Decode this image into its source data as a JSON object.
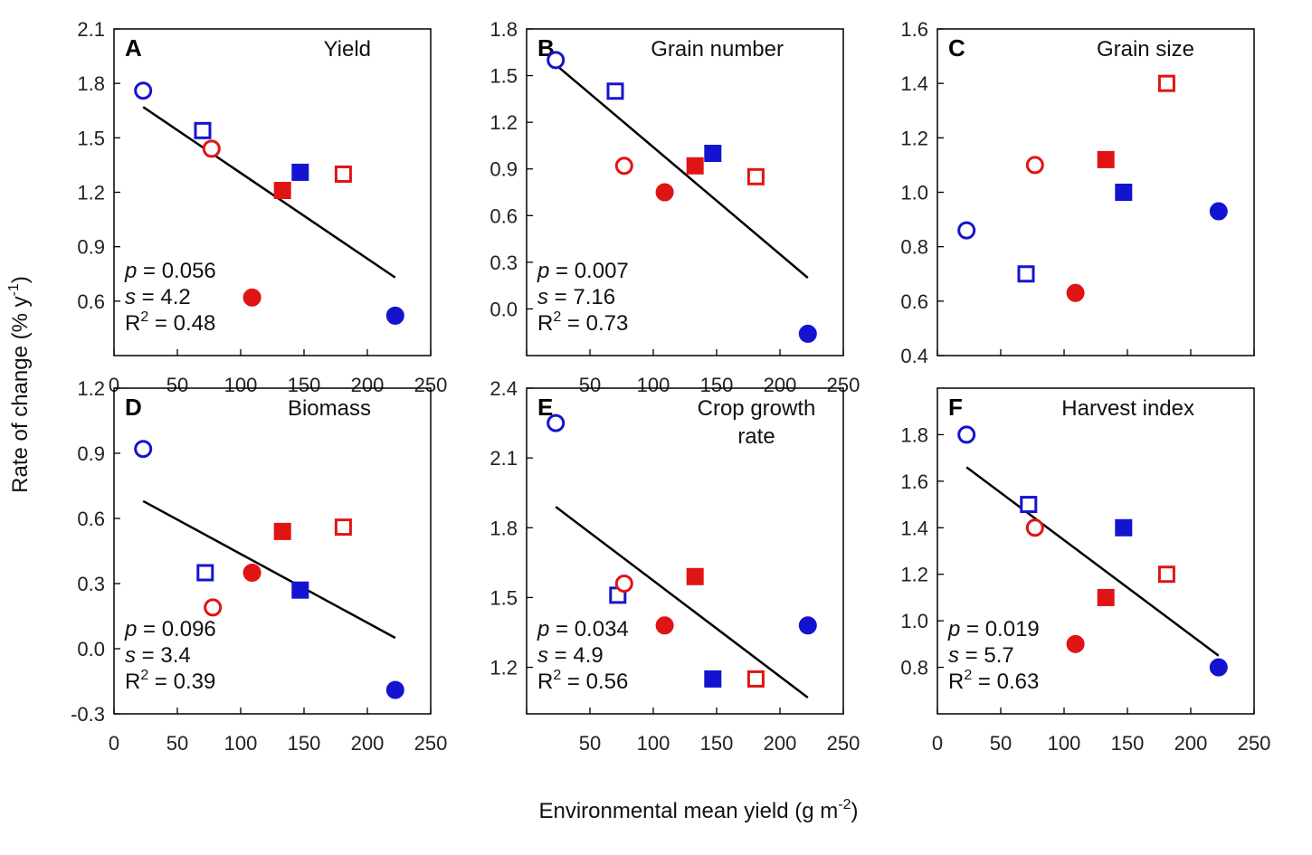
{
  "figure": {
    "xlabel": "Environmental mean yield (g m",
    "xlabel_sup": "-2",
    "xlabel_end": ")",
    "ylabel": "Rate of change (% y",
    "ylabel_sup": "-1",
    "ylabel_end": ")"
  },
  "colors": {
    "red": "#e01414",
    "blue": "#1414d0",
    "line": "#000000"
  },
  "chart_data": [
    {
      "type": "scatter",
      "letter": "A",
      "title": [
        "Yield"
      ],
      "xlim": [
        0,
        250
      ],
      "xticks": [
        0,
        50,
        100,
        150,
        200,
        250
      ],
      "xtick_labels": [
        "0",
        "50",
        "100",
        "150",
        "200",
        "250"
      ],
      "ylim": [
        0.3,
        2.1
      ],
      "yticks": [
        0.6,
        0.9,
        1.2,
        1.5,
        1.8,
        2.1
      ],
      "ytick_labels": [
        "0.6",
        "0.9",
        "1.2",
        "1.5",
        "1.8",
        "2.1"
      ],
      "points": [
        {
          "x": 23,
          "y": 1.76,
          "shape": "circle",
          "fill": "open",
          "color": "blue"
        },
        {
          "x": 70,
          "y": 1.54,
          "shape": "square",
          "fill": "open",
          "color": "blue"
        },
        {
          "x": 77,
          "y": 1.44,
          "shape": "circle",
          "fill": "open",
          "color": "red"
        },
        {
          "x": 133,
          "y": 1.21,
          "shape": "square",
          "fill": "filled",
          "color": "red"
        },
        {
          "x": 147,
          "y": 1.31,
          "shape": "square",
          "fill": "filled",
          "color": "blue"
        },
        {
          "x": 181,
          "y": 1.3,
          "shape": "square",
          "fill": "open",
          "color": "red"
        },
        {
          "x": 109,
          "y": 0.62,
          "shape": "circle",
          "fill": "filled",
          "color": "red"
        },
        {
          "x": 222,
          "y": 0.52,
          "shape": "circle",
          "fill": "filled",
          "color": "blue"
        }
      ],
      "fit_line": {
        "x": [
          23,
          222
        ],
        "y": [
          1.67,
          0.73
        ]
      },
      "stats": {
        "p": "p",
        "p_val": " = 0.056",
        "s": "s",
        "s_val": " = 4.2",
        "r": "R",
        "r_sup": "2",
        "r_val": " = 0.48"
      },
      "stats_pos": "bottom-left"
    },
    {
      "type": "scatter",
      "letter": "B",
      "title": [
        "Grain number"
      ],
      "xlim": [
        0,
        250
      ],
      "xticks": [
        50,
        100,
        150,
        200,
        250
      ],
      "xtick_labels": [
        "50",
        "100",
        "150",
        "200",
        "250"
      ],
      "ylim": [
        -0.3,
        1.8
      ],
      "yticks": [
        0.0,
        0.3,
        0.6,
        0.9,
        1.2,
        1.5,
        1.8
      ],
      "ytick_labels": [
        "0.0",
        "0.3",
        "0.6",
        "0.9",
        "1.2",
        "1.5",
        "1.8"
      ],
      "points": [
        {
          "x": 23,
          "y": 1.6,
          "shape": "circle",
          "fill": "open",
          "color": "blue"
        },
        {
          "x": 70,
          "y": 1.4,
          "shape": "square",
          "fill": "open",
          "color": "blue"
        },
        {
          "x": 77,
          "y": 0.92,
          "shape": "circle",
          "fill": "open",
          "color": "red"
        },
        {
          "x": 109,
          "y": 0.75,
          "shape": "circle",
          "fill": "filled",
          "color": "red"
        },
        {
          "x": 133,
          "y": 0.92,
          "shape": "square",
          "fill": "filled",
          "color": "red"
        },
        {
          "x": 147,
          "y": 1.0,
          "shape": "square",
          "fill": "filled",
          "color": "blue"
        },
        {
          "x": 181,
          "y": 0.85,
          "shape": "square",
          "fill": "open",
          "color": "red"
        },
        {
          "x": 222,
          "y": -0.16,
          "shape": "circle",
          "fill": "filled",
          "color": "blue"
        }
      ],
      "fit_line": {
        "x": [
          23,
          222
        ],
        "y": [
          1.57,
          0.2
        ]
      },
      "stats": {
        "p": "p",
        "p_val": " = 0.007",
        "s": "s",
        "s_val": " = 7.16",
        "r": "R",
        "r_sup": "2",
        "r_val": " = 0.73"
      },
      "stats_pos": "bottom-left"
    },
    {
      "type": "scatter",
      "letter": "C",
      "title": [
        "Grain size"
      ],
      "xlim": [
        0,
        250
      ],
      "xticks": [],
      "xtick_labels": [],
      "ylim": [
        0.4,
        1.6
      ],
      "yticks": [
        0.4,
        0.6,
        0.8,
        1.0,
        1.2,
        1.4,
        1.6
      ],
      "ytick_labels": [
        "0.4",
        "0.6",
        "0.8",
        "1.0",
        "1.2",
        "1.4",
        "1.6"
      ],
      "points": [
        {
          "x": 23,
          "y": 0.86,
          "shape": "circle",
          "fill": "open",
          "color": "blue"
        },
        {
          "x": 70,
          "y": 0.7,
          "shape": "square",
          "fill": "open",
          "color": "blue"
        },
        {
          "x": 77,
          "y": 1.1,
          "shape": "circle",
          "fill": "open",
          "color": "red"
        },
        {
          "x": 109,
          "y": 0.63,
          "shape": "circle",
          "fill": "filled",
          "color": "red"
        },
        {
          "x": 133,
          "y": 1.12,
          "shape": "square",
          "fill": "filled",
          "color": "red"
        },
        {
          "x": 147,
          "y": 1.0,
          "shape": "square",
          "fill": "filled",
          "color": "blue"
        },
        {
          "x": 181,
          "y": 1.4,
          "shape": "square",
          "fill": "open",
          "color": "red"
        },
        {
          "x": 222,
          "y": 0.93,
          "shape": "circle",
          "fill": "filled",
          "color": "blue"
        }
      ],
      "fit_line": null,
      "stats": null
    },
    {
      "type": "scatter",
      "letter": "D",
      "title": [
        "Biomass"
      ],
      "xlim": [
        0,
        250
      ],
      "xticks": [
        0,
        50,
        100,
        150,
        200,
        250
      ],
      "xtick_labels": [
        "0",
        "50",
        "100",
        "150",
        "200",
        "250"
      ],
      "ylim": [
        -0.3,
        1.2
      ],
      "yticks": [
        -0.3,
        0.0,
        0.3,
        0.6,
        0.9,
        1.2
      ],
      "ytick_labels": [
        "-0.3",
        "0.0",
        "0.3",
        "0.6",
        "0.9",
        "1.2"
      ],
      "points": [
        {
          "x": 23,
          "y": 0.92,
          "shape": "circle",
          "fill": "open",
          "color": "blue"
        },
        {
          "x": 72,
          "y": 0.35,
          "shape": "square",
          "fill": "open",
          "color": "blue"
        },
        {
          "x": 78,
          "y": 0.19,
          "shape": "circle",
          "fill": "open",
          "color": "red"
        },
        {
          "x": 109,
          "y": 0.35,
          "shape": "circle",
          "fill": "filled",
          "color": "red"
        },
        {
          "x": 133,
          "y": 0.54,
          "shape": "square",
          "fill": "filled",
          "color": "red"
        },
        {
          "x": 147,
          "y": 0.27,
          "shape": "square",
          "fill": "filled",
          "color": "blue"
        },
        {
          "x": 181,
          "y": 0.56,
          "shape": "square",
          "fill": "open",
          "color": "red"
        },
        {
          "x": 222,
          "y": -0.19,
          "shape": "circle",
          "fill": "filled",
          "color": "blue"
        }
      ],
      "fit_line": {
        "x": [
          23,
          222
        ],
        "y": [
          0.68,
          0.05
        ]
      },
      "stats": {
        "p": "p",
        "p_val": " = 0.096",
        "s": "s",
        "s_val": " = 3.4",
        "r": "R",
        "r_sup": "2",
        "r_val": " = 0.39"
      },
      "stats_pos": "bottom-left"
    },
    {
      "type": "scatter",
      "letter": "E",
      "title": [
        "Crop growth",
        "rate"
      ],
      "xlim": [
        0,
        250
      ],
      "xticks": [
        50,
        100,
        150,
        200,
        250
      ],
      "xtick_labels": [
        "50",
        "100",
        "150",
        "200",
        "250"
      ],
      "ylim": [
        1.0,
        2.4
      ],
      "yticks": [
        1.2,
        1.5,
        1.8,
        2.1,
        2.4
      ],
      "ytick_labels": [
        "1.2",
        "1.5",
        "1.8",
        "2.1",
        "2.4"
      ],
      "points": [
        {
          "x": 23,
          "y": 2.25,
          "shape": "circle",
          "fill": "open",
          "color": "blue"
        },
        {
          "x": 72,
          "y": 1.51,
          "shape": "square",
          "fill": "open",
          "color": "blue"
        },
        {
          "x": 77,
          "y": 1.56,
          "shape": "circle",
          "fill": "open",
          "color": "red"
        },
        {
          "x": 109,
          "y": 1.38,
          "shape": "circle",
          "fill": "filled",
          "color": "red"
        },
        {
          "x": 133,
          "y": 1.59,
          "shape": "square",
          "fill": "filled",
          "color": "red"
        },
        {
          "x": 147,
          "y": 1.15,
          "shape": "square",
          "fill": "filled",
          "color": "blue"
        },
        {
          "x": 181,
          "y": 1.15,
          "shape": "square",
          "fill": "open",
          "color": "red"
        },
        {
          "x": 222,
          "y": 1.38,
          "shape": "circle",
          "fill": "filled",
          "color": "blue"
        }
      ],
      "fit_line": {
        "x": [
          23,
          222
        ],
        "y": [
          1.89,
          1.07
        ]
      },
      "stats": {
        "p": "p",
        "p_val": " = 0.034",
        "s": "s",
        "s_val": " = 4.9",
        "r": "R",
        "r_sup": "2",
        "r_val": " = 0.56"
      },
      "stats_pos": "bottom-left"
    },
    {
      "type": "scatter",
      "letter": "F",
      "title": [
        "Harvest index"
      ],
      "xlim": [
        0,
        250
      ],
      "xticks": [
        0,
        50,
        100,
        150,
        200,
        250
      ],
      "xtick_labels": [
        "0",
        "50",
        "100",
        "150",
        "200",
        "250"
      ],
      "ylim": [
        0.6,
        2.0
      ],
      "yticks": [
        0.8,
        1.0,
        1.2,
        1.4,
        1.6,
        1.8
      ],
      "ytick_labels": [
        "0.8",
        "1.0",
        "1.2",
        "1.4",
        "1.6",
        "1.8"
      ],
      "points": [
        {
          "x": 23,
          "y": 1.8,
          "shape": "circle",
          "fill": "open",
          "color": "blue"
        },
        {
          "x": 72,
          "y": 1.5,
          "shape": "square",
          "fill": "open",
          "color": "blue"
        },
        {
          "x": 77,
          "y": 1.4,
          "shape": "circle",
          "fill": "open",
          "color": "red"
        },
        {
          "x": 109,
          "y": 0.9,
          "shape": "circle",
          "fill": "filled",
          "color": "red"
        },
        {
          "x": 133,
          "y": 1.1,
          "shape": "square",
          "fill": "filled",
          "color": "red"
        },
        {
          "x": 147,
          "y": 1.4,
          "shape": "square",
          "fill": "filled",
          "color": "blue"
        },
        {
          "x": 181,
          "y": 1.2,
          "shape": "square",
          "fill": "open",
          "color": "red"
        },
        {
          "x": 222,
          "y": 0.8,
          "shape": "circle",
          "fill": "filled",
          "color": "blue"
        }
      ],
      "fit_line": {
        "x": [
          23,
          222
        ],
        "y": [
          1.66,
          0.85
        ]
      },
      "stats": {
        "p": "p",
        "p_val": " = 0.019",
        "s": "s",
        "s_val": " = 5.7",
        "r": "R",
        "r_sup": "2",
        "r_val": " = 0.63"
      },
      "stats_pos": "bottom-left"
    }
  ]
}
